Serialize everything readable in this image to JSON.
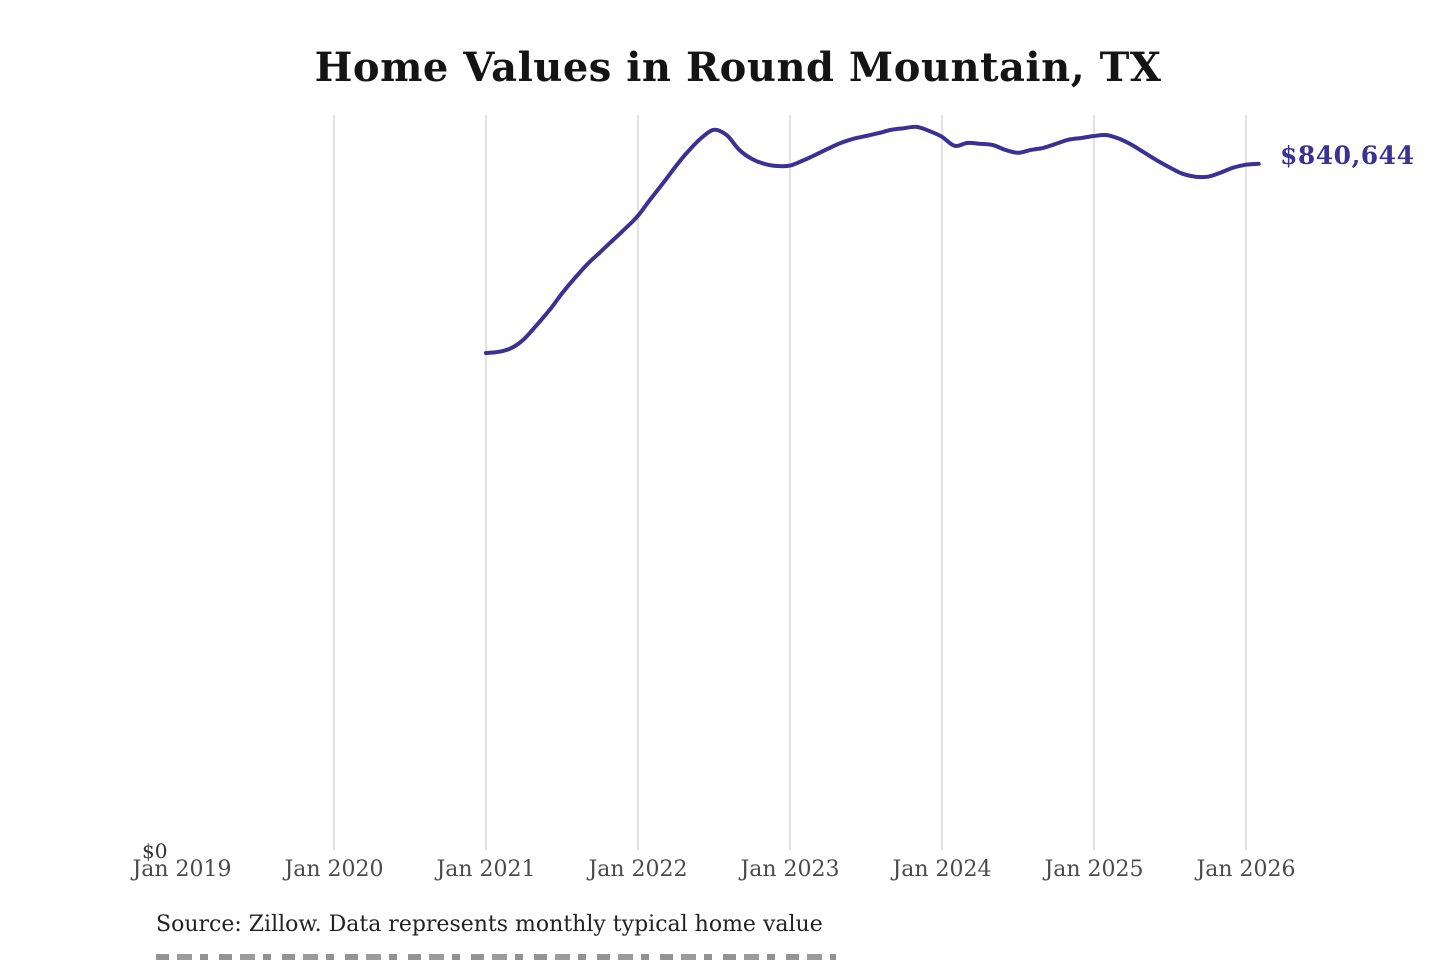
{
  "title": "Home Values in Round Mountain, TX",
  "end_label": "$840,644",
  "y_zero_label": "$0",
  "source_note": "Source: Zillow. Data represents monthly typical home value",
  "colors": {
    "line": "#3a3193",
    "end_label_text": "#3a3193",
    "gridline": "#c6c6c6",
    "axis_text": "#4a4a4a",
    "title_text": "#141414",
    "source_text": "#222222"
  },
  "chart_data": {
    "type": "line",
    "title": "Home Values in Round Mountain, TX",
    "xlabel": "",
    "ylabel": "",
    "ylim": [
      0,
      900000
    ],
    "grid": "vertical-only",
    "legend": "none",
    "x_ticks": [
      {
        "label": "Jan 2019",
        "year": 2019,
        "gridline": false
      },
      {
        "label": "Jan 2020",
        "year": 2020,
        "gridline": true
      },
      {
        "label": "Jan 2021",
        "year": 2021,
        "gridline": true
      },
      {
        "label": "Jan 2022",
        "year": 2022,
        "gridline": true
      },
      {
        "label": "Jan 2023",
        "year": 2023,
        "gridline": true
      },
      {
        "label": "Jan 2024",
        "year": 2024,
        "gridline": true
      },
      {
        "label": "Jan 2025",
        "year": 2025,
        "gridline": true
      },
      {
        "label": "Jan 2026",
        "year": 2026,
        "gridline": true
      }
    ],
    "end_value": 840644,
    "end_value_label": "$840,644",
    "series": [
      {
        "name": "Monthly typical home value",
        "color": "#3a3193",
        "points": [
          [
            "2021-01",
            610500
          ],
          [
            "2021-02",
            612000
          ],
          [
            "2021-03",
            616500
          ],
          [
            "2021-04",
            627500
          ],
          [
            "2021-05",
            644500
          ],
          [
            "2021-06",
            662500
          ],
          [
            "2021-07",
            683000
          ],
          [
            "2021-08",
            701500
          ],
          [
            "2021-09",
            718500
          ],
          [
            "2021-10",
            733000
          ],
          [
            "2021-11",
            747500
          ],
          [
            "2021-12",
            762000
          ],
          [
            "2022-01",
            777500
          ],
          [
            "2022-02",
            798000
          ],
          [
            "2022-03",
            817500
          ],
          [
            "2022-04",
            838000
          ],
          [
            "2022-05",
            856500
          ],
          [
            "2022-06",
            872000
          ],
          [
            "2022-07",
            882000
          ],
          [
            "2022-08",
            875500
          ],
          [
            "2022-09",
            857500
          ],
          [
            "2022-10",
            846500
          ],
          [
            "2022-11",
            840500
          ],
          [
            "2022-12",
            838000
          ],
          [
            "2023-01",
            838500
          ],
          [
            "2023-02",
            844500
          ],
          [
            "2023-03",
            851500
          ],
          [
            "2023-04",
            859000
          ],
          [
            "2023-05",
            866000
          ],
          [
            "2023-06",
            871000
          ],
          [
            "2023-07",
            874500
          ],
          [
            "2023-08",
            878000
          ],
          [
            "2023-09",
            882000
          ],
          [
            "2023-10",
            884000
          ],
          [
            "2023-11",
            885500
          ],
          [
            "2023-12",
            880500
          ],
          [
            "2024-01",
            873500
          ],
          [
            "2024-02",
            862500
          ],
          [
            "2024-03",
            866000
          ],
          [
            "2024-04",
            865000
          ],
          [
            "2024-05",
            863500
          ],
          [
            "2024-06",
            857500
          ],
          [
            "2024-07",
            854000
          ],
          [
            "2024-08",
            857500
          ],
          [
            "2024-09",
            860000
          ],
          [
            "2024-10",
            865000
          ],
          [
            "2024-11",
            870000
          ],
          [
            "2024-12",
            872000
          ],
          [
            "2025-01",
            874500
          ],
          [
            "2025-02",
            875500
          ],
          [
            "2025-03",
            871000
          ],
          [
            "2025-04",
            863500
          ],
          [
            "2025-05",
            854000
          ],
          [
            "2025-06",
            844500
          ],
          [
            "2025-07",
            836000
          ],
          [
            "2025-08",
            828500
          ],
          [
            "2025-09",
            825000
          ],
          [
            "2025-10",
            825000
          ],
          [
            "2025-11",
            830000
          ],
          [
            "2025-12",
            836000
          ],
          [
            "2026-01",
            839500
          ],
          [
            "2026-02",
            840644
          ]
        ]
      }
    ]
  }
}
